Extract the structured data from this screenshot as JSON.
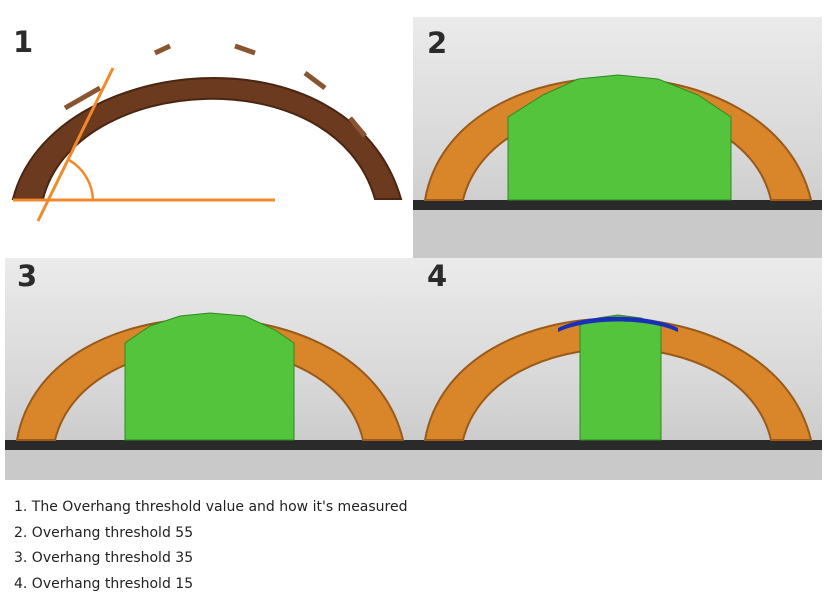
{
  "panels": [
    {
      "number": "1"
    },
    {
      "number": "2"
    },
    {
      "number": "3"
    },
    {
      "number": "4"
    }
  ],
  "captions": [
    "1. The Overhang threshold value and how it's measured",
    "2. Overhang threshold 55",
    "3. Overhang threshold 35",
    "4. Overhang threshold 15"
  ],
  "colors": {
    "arch_dark": "#6b3a1f",
    "arch_orange": "#d9862a",
    "support_green": "#54c43c",
    "overhang_blue": "#1a2fb8",
    "angle_line": "#f08a2b",
    "bed": "#2a2a2a"
  }
}
